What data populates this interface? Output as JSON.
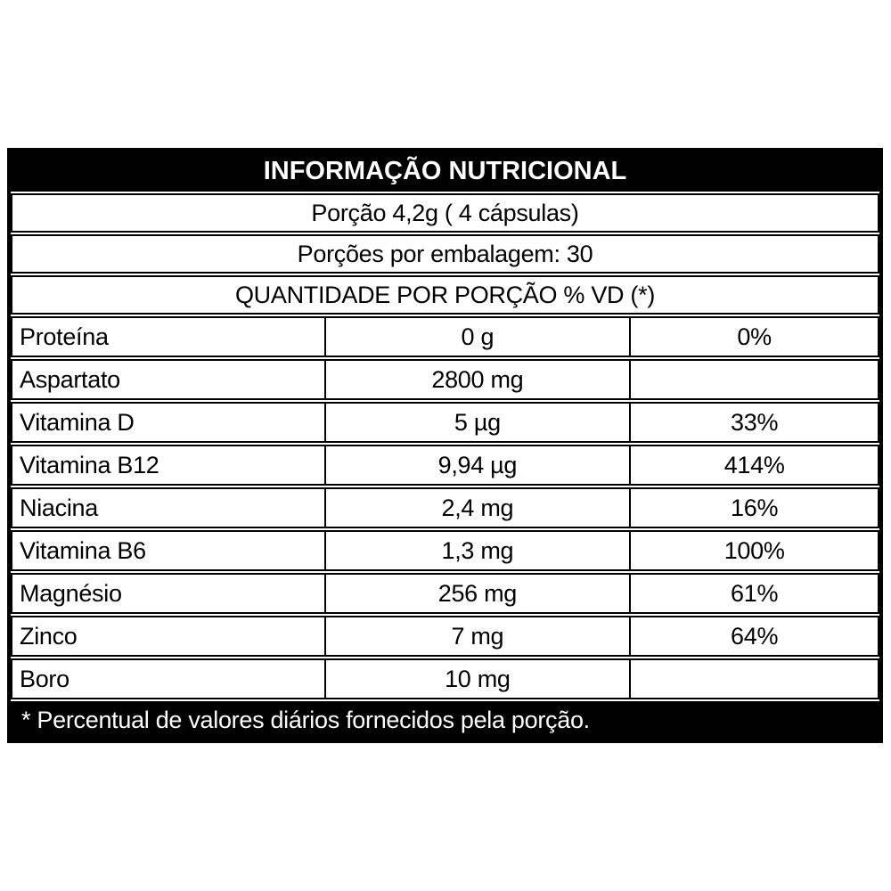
{
  "colors": {
    "background": "#ffffff",
    "border": "#000000",
    "band_background": "#000000",
    "band_text": "#ffffff",
    "text": "#000000"
  },
  "label": {
    "title": "INFORMAÇÃO NUTRICIONAL",
    "portion": "Porção 4,2g ( 4 cápsulas)",
    "portions_per_package": "Porções por embalagem: 30",
    "quantity_header": "QUANTIDADE POR PORÇÃO % VD (*)",
    "footnote": "* Percentual de valores diários fornecidos pela porção.",
    "rows": [
      {
        "nutrient": "Proteína",
        "amount": "0 g",
        "dv": "0%"
      },
      {
        "nutrient": "Aspartato",
        "amount": "2800 mg",
        "dv": ""
      },
      {
        "nutrient": "Vitamina D",
        "amount": "5 µg",
        "dv": "33%"
      },
      {
        "nutrient": "Vitamina B12",
        "amount": "9,94 µg",
        "dv": "414%"
      },
      {
        "nutrient": "Niacina",
        "amount": "2,4 mg",
        "dv": "16%"
      },
      {
        "nutrient": "Vitamina B6",
        "amount": "1,3 mg",
        "dv": "100%"
      },
      {
        "nutrient": "Magnésio",
        "amount": "256 mg",
        "dv": "61%"
      },
      {
        "nutrient": "Zinco",
        "amount": "7 mg",
        "dv": "64%"
      },
      {
        "nutrient": "Boro",
        "amount": "10 mg",
        "dv": ""
      }
    ]
  }
}
